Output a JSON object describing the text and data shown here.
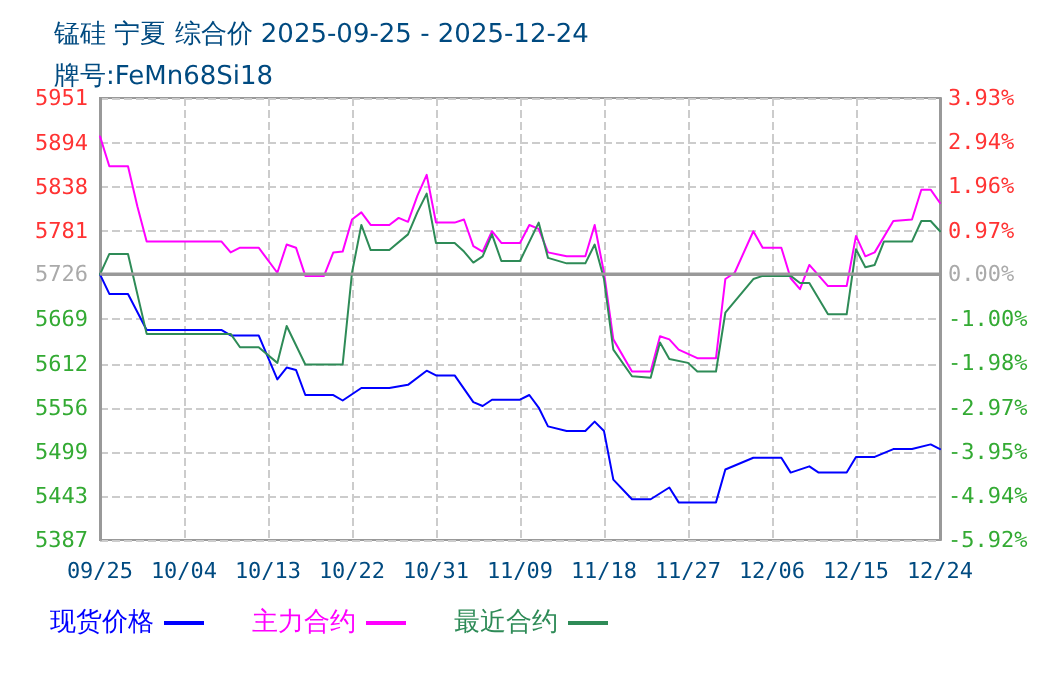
{
  "chart_data": {
    "type": "line",
    "title": "锰硅 宁夏 综合价 2025-09-25 - 2025-12-24",
    "subtitle": "牌号:FeMn68Si18",
    "xlim": [
      "--09-25",
      "--12-24"
    ],
    "xticks": [
      {
        "value": "--09-25",
        "label": "09/25"
      },
      {
        "value": "--10-04",
        "label": "10/04"
      },
      {
        "value": "--10-13",
        "label": "10/13"
      },
      {
        "value": "--10-22",
        "label": "10/22"
      },
      {
        "value": "--10-31",
        "label": "10/31"
      },
      {
        "value": "--11-09",
        "label": "11/09"
      },
      {
        "value": "--11-18",
        "label": "11/18"
      },
      {
        "value": "--11-27",
        "label": "11/27"
      },
      {
        "value": "--12-06",
        "label": "12/06"
      },
      {
        "value": "--12-15",
        "label": "12/15"
      },
      {
        "value": "--12-24",
        "label": "12/24"
      }
    ],
    "ylim": [
      5387,
      5951
    ],
    "yticks": [
      5387,
      5443,
      5499,
      5556,
      5612,
      5669,
      5726,
      5781,
      5838,
      5894,
      5951
    ],
    "y2lim": [
      -5.92,
      3.93
    ],
    "y2ticks": [
      {
        "value": -5.92,
        "label": "-5.92%"
      },
      {
        "value": -4.94,
        "label": "-4.94%"
      },
      {
        "value": -3.95,
        "label": "-3.95%"
      },
      {
        "value": -2.97,
        "label": "-2.97%"
      },
      {
        "value": -1.98,
        "label": "-1.98%"
      },
      {
        "value": -1.0,
        "label": "-1.00%"
      },
      {
        "value": 0,
        "label": "0.00%"
      },
      {
        "value": 0.97,
        "label": "0.97%"
      },
      {
        "value": 1.96,
        "label": "1.96%"
      },
      {
        "value": 2.94,
        "label": "2.94%"
      },
      {
        "value": 3.93,
        "label": "3.93%"
      }
    ],
    "ref_lines": [
      {
        "axis": "y2",
        "value": 0,
        "color": "#999999"
      }
    ],
    "grid": true,
    "legend": "bottom left",
    "marker": "none",
    "line_style": "solid",
    "series": [
      {
        "name": "现货价格",
        "color": "#0000ff",
        "x": [
          "--09-25",
          "--09-26",
          "--09-28",
          "--09-30",
          "--10-08",
          "--10-09",
          "--10-12",
          "--10-14",
          "--10-15",
          "--10-16",
          "--10-17",
          "--10-20",
          "--10-21",
          "--10-23",
          "--10-26",
          "--10-28",
          "--10-30",
          "--10-31",
          "--11-02",
          "--11-04",
          "--11-05",
          "--11-06",
          "--11-09",
          "--11-10",
          "--11-11",
          "--11-12",
          "--11-14",
          "--11-16",
          "--11-17",
          "--11-18",
          "--11-19",
          "--11-21",
          "--11-23",
          "--11-25",
          "--11-26",
          "--11-30",
          "--12-01",
          "--12-04",
          "--12-07",
          "--12-08",
          "--12-10",
          "--12-11",
          "--12-14",
          "--12-15",
          "--12-17",
          "--12-19",
          "--12-21",
          "--12-23",
          "--12-24"
        ],
        "values": [
          5726,
          5701,
          5701,
          5655,
          5655,
          5648,
          5648,
          5592,
          5607,
          5604,
          5572,
          5572,
          5565,
          5581,
          5581,
          5585,
          5603,
          5597,
          5597,
          5563,
          5558,
          5566,
          5566,
          5572,
          5556,
          5532,
          5526,
          5526,
          5538,
          5526,
          5464,
          5439,
          5439,
          5454,
          5435,
          5435,
          5477,
          5492,
          5492,
          5473,
          5481,
          5473,
          5473,
          5493,
          5493,
          5503,
          5503,
          5509,
          5503
        ]
      },
      {
        "name": "主力合约",
        "color": "#ff00ff",
        "x": [
          "--09-25",
          "--09-26",
          "--09-28",
          "--09-29",
          "--09-30",
          "--10-08",
          "--10-09",
          "--10-10",
          "--10-12",
          "--10-14",
          "--10-15",
          "--10-16",
          "--10-17",
          "--10-19",
          "--10-20",
          "--10-21",
          "--10-22",
          "--10-23",
          "--10-24",
          "--10-26",
          "--10-27",
          "--10-28",
          "--10-29",
          "--10-30",
          "--10-31",
          "--11-02",
          "--11-03",
          "--11-04",
          "--11-05",
          "--11-06",
          "--11-07",
          "--11-09",
          "--11-10",
          "--11-11",
          "--11-12",
          "--11-14",
          "--11-16",
          "--11-17",
          "--11-18",
          "--11-19",
          "--11-21",
          "--11-23",
          "--11-24",
          "--11-25",
          "--11-26",
          "--11-28",
          "--11-30",
          "--12-01",
          "--12-02",
          "--12-04",
          "--12-05",
          "--12-07",
          "--12-08",
          "--12-09",
          "--12-10",
          "--12-12",
          "--12-14",
          "--12-15",
          "--12-16",
          "--12-17",
          "--12-19",
          "--12-21",
          "--12-22",
          "--12-23",
          "--12-24"
        ],
        "values": [
          5902,
          5864,
          5864,
          5813,
          5768,
          5768,
          5754,
          5760,
          5760,
          5728,
          5764,
          5760,
          5724,
          5724,
          5754,
          5755,
          5796,
          5805,
          5789,
          5789,
          5798,
          5793,
          5826,
          5853,
          5792,
          5792,
          5796,
          5762,
          5755,
          5781,
          5766,
          5766,
          5789,
          5784,
          5754,
          5749,
          5749,
          5789,
          5728,
          5643,
          5602,
          5602,
          5647,
          5643,
          5630,
          5619,
          5619,
          5720,
          5728,
          5781,
          5760,
          5760,
          5721,
          5707,
          5738,
          5711,
          5711,
          5775,
          5749,
          5754,
          5794,
          5796,
          5834,
          5834,
          5817
        ]
      },
      {
        "name": "最近合约",
        "color": "#2e8b57",
        "x": [
          "--09-25",
          "--09-26",
          "--09-28",
          "--09-30",
          "--10-09",
          "--10-10",
          "--10-12",
          "--10-14",
          "--10-15",
          "--10-17",
          "--10-21",
          "--10-22",
          "--10-23",
          "--10-24",
          "--10-26",
          "--10-28",
          "--10-29",
          "--10-30",
          "--10-31",
          "--11-02",
          "--11-03",
          "--11-04",
          "--11-05",
          "--11-06",
          "--11-07",
          "--11-09",
          "--11-11",
          "--11-12",
          "--11-14",
          "--11-16",
          "--11-17",
          "--11-18",
          "--11-19",
          "--11-21",
          "--11-23",
          "--11-24",
          "--11-25",
          "--11-27",
          "--11-28",
          "--11-30",
          "--12-01",
          "--12-04",
          "--12-05",
          "--12-08",
          "--12-09",
          "--12-10",
          "--12-12",
          "--12-14",
          "--12-15",
          "--12-16",
          "--12-17",
          "--12-18",
          "--12-21",
          "--12-22",
          "--12-23",
          "--12-24"
        ],
        "values": [
          5726,
          5752,
          5752,
          5650,
          5650,
          5633,
          5633,
          5613,
          5660,
          5611,
          5611,
          5728,
          5789,
          5757,
          5757,
          5777,
          5805,
          5829,
          5766,
          5766,
          5755,
          5741,
          5749,
          5777,
          5743,
          5743,
          5792,
          5747,
          5740,
          5740,
          5764,
          5720,
          5630,
          5596,
          5594,
          5639,
          5618,
          5613,
          5602,
          5602,
          5677,
          5720,
          5724,
          5724,
          5715,
          5715,
          5675,
          5675,
          5758,
          5735,
          5738,
          5768,
          5768,
          5794,
          5794,
          5781
        ]
      }
    ]
  }
}
